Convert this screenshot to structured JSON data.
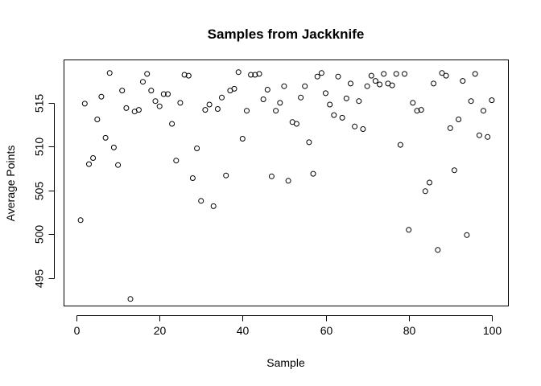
{
  "chart_data": {
    "type": "scatter",
    "title": "Samples from Jackknife",
    "xlabel": "Sample",
    "ylabel": "Average Points",
    "xlim": [
      -3.0,
      104.0
    ],
    "ylim": [
      491.8,
      519.9
    ],
    "x_ticks": [
      0,
      20,
      40,
      60,
      80,
      100
    ],
    "y_ticks": [
      495,
      500,
      505,
      510,
      515
    ],
    "grid": false,
    "x": [
      1,
      2,
      3,
      4,
      5,
      6,
      7,
      8,
      9,
      10,
      11,
      12,
      13,
      14,
      15,
      16,
      17,
      18,
      19,
      20,
      21,
      22,
      23,
      24,
      25,
      26,
      27,
      28,
      29,
      30,
      31,
      32,
      33,
      34,
      35,
      36,
      37,
      38,
      39,
      40,
      41,
      42,
      43,
      44,
      45,
      46,
      47,
      48,
      49,
      50,
      51,
      52,
      53,
      54,
      55,
      56,
      57,
      58,
      59,
      60,
      61,
      62,
      63,
      64,
      65,
      66,
      67,
      68,
      69,
      70,
      71,
      72,
      73,
      74,
      75,
      76,
      77,
      78,
      79,
      80,
      81,
      82,
      83,
      84,
      85,
      86,
      87,
      88,
      89,
      90,
      91,
      92,
      93,
      94,
      95,
      96,
      97,
      98,
      99,
      100
    ],
    "y": [
      501.6,
      514.9,
      508.0,
      508.7,
      513.1,
      515.7,
      511.0,
      518.4,
      509.9,
      507.9,
      516.4,
      514.4,
      492.6,
      514.0,
      514.2,
      517.4,
      518.3,
      516.4,
      515.2,
      514.6,
      516.0,
      516.0,
      512.6,
      508.4,
      515.0,
      518.2,
      518.1,
      506.4,
      509.8,
      503.8,
      514.2,
      514.8,
      503.2,
      514.3,
      515.6,
      506.7,
      516.4,
      516.6,
      518.5,
      510.9,
      514.1,
      518.2,
      518.2,
      518.3,
      515.4,
      516.5,
      506.6,
      514.1,
      515.0,
      516.9,
      506.1,
      512.8,
      512.6,
      515.6,
      516.9,
      510.5,
      506.9,
      518.0,
      518.4,
      516.1,
      514.8,
      513.6,
      518.0,
      513.3,
      515.5,
      517.2,
      512.3,
      515.2,
      512.0,
      516.9,
      518.1,
      517.5,
      517.1,
      518.3,
      517.2,
      517.0,
      518.3,
      510.2,
      518.3,
      500.5,
      515.0,
      514.1,
      514.2,
      504.9,
      505.9,
      517.2,
      498.2,
      518.4,
      518.1,
      512.1,
      507.3,
      513.1,
      517.5,
      499.9,
      515.2,
      518.3,
      511.3,
      514.1,
      511.1,
      515.3
    ]
  }
}
